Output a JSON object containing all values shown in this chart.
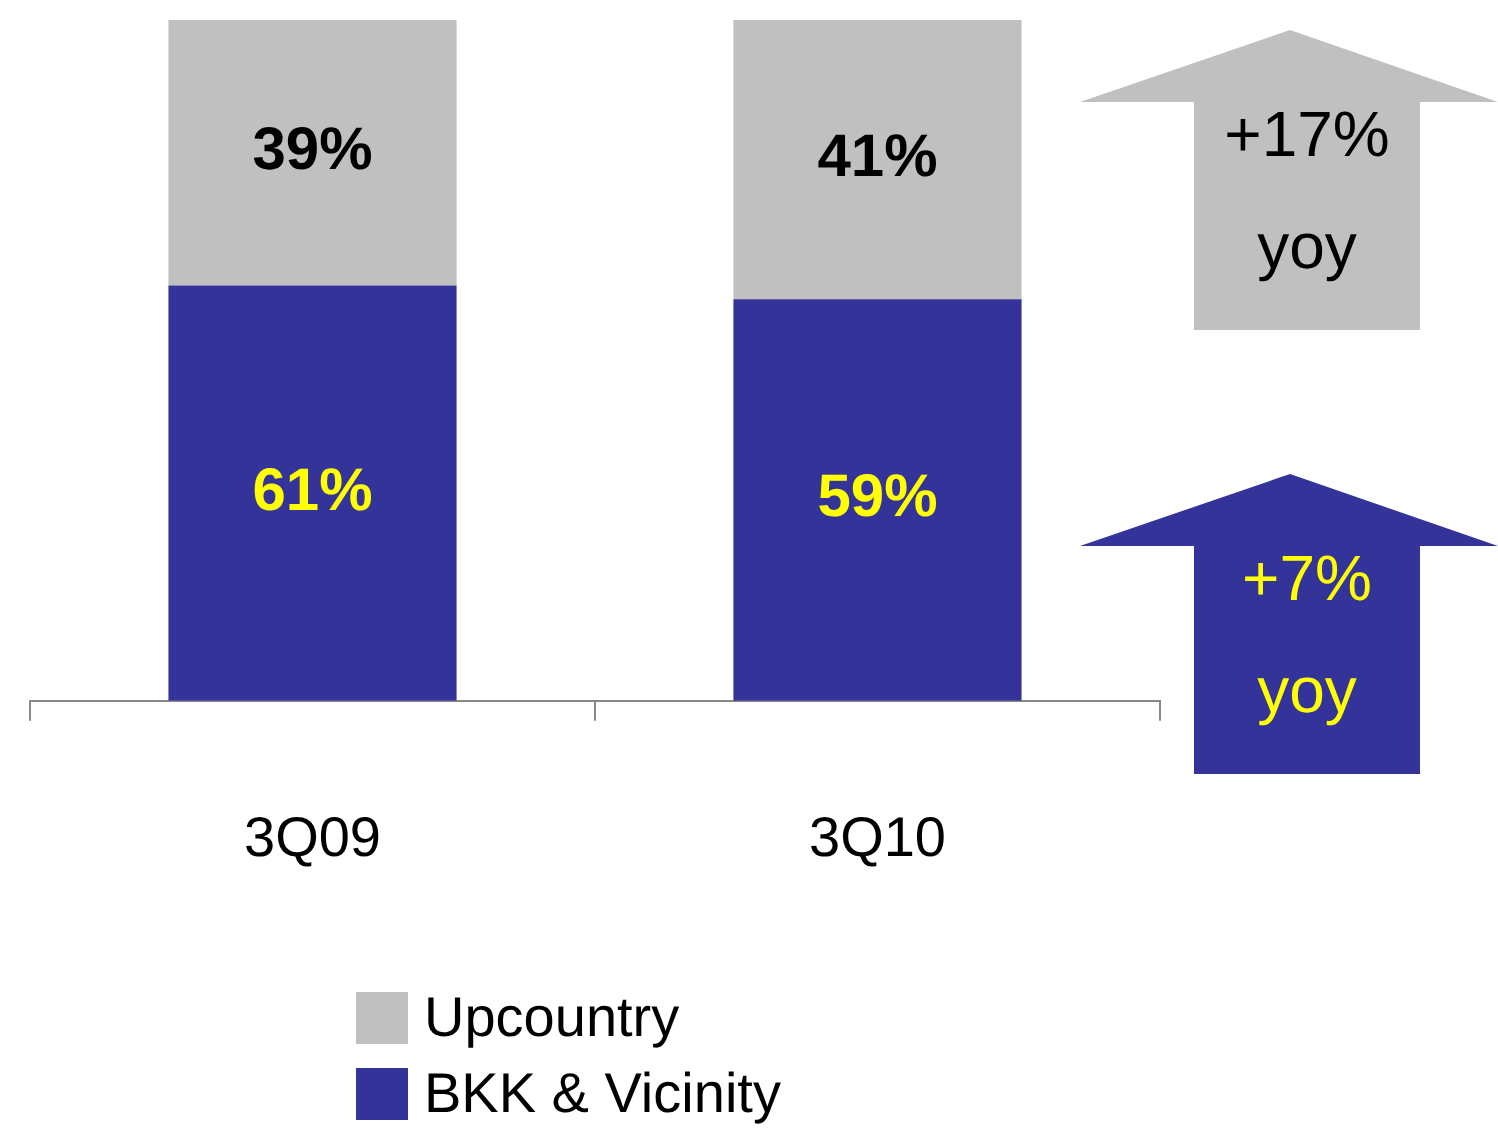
{
  "chart_data": {
    "type": "bar",
    "stacked": true,
    "categories": [
      "3Q09",
      "3Q10"
    ],
    "ylim": [
      0,
      100
    ],
    "tick_labels": "x",
    "grid": false,
    "legend": "bottom",
    "series": [
      {
        "name": "BKK & Vicinity",
        "color": "#333399",
        "values": [
          61,
          59
        ],
        "value_labels": [
          "61%",
          "59%"
        ]
      },
      {
        "name": "Upcountry",
        "color": "#c0c0c0",
        "values": [
          39,
          41
        ],
        "value_labels": [
          "39%",
          "41%"
        ]
      }
    ],
    "annotations": [
      "+17%\nyoy",
      "+7%\nyoy"
    ]
  }
}
